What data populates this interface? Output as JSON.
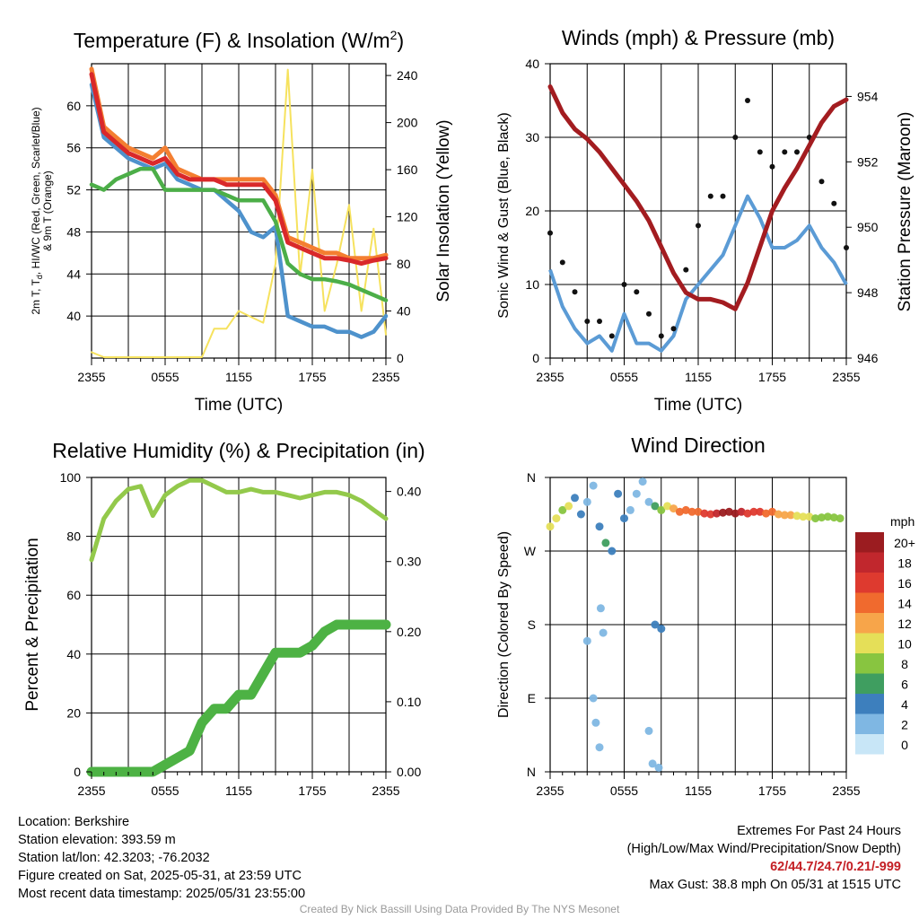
{
  "panels": {
    "temp": {
      "title": "Temperature (F) & Insolation (W/m",
      "title_sup": "2",
      "title_close": ")",
      "ylabel_left_1": "2m T, T",
      "ylabel_left_sub": "d",
      "ylabel_left_2": ", HI/WC (Red, Green, Scarlet/Blue)",
      "ylabel_left_3": "& 9m T (Orange)",
      "ylabel_right": "Solar Insolation (Yellow)",
      "xlabel": "Time (UTC)",
      "yticks_left": [
        "40",
        "44",
        "48",
        "52",
        "56",
        "60"
      ],
      "yticks_right": [
        "0",
        "40",
        "80",
        "120",
        "160",
        "200",
        "240"
      ],
      "xticks": [
        "2355",
        "0555",
        "1155",
        "1755",
        "2355"
      ]
    },
    "wind": {
      "title": "Winds (mph) & Pressure (mb)",
      "ylabel_left": "Sonic Wind & Gust (Blue, Black)",
      "ylabel_right": "Station Pressure (Maroon)",
      "xlabel": "Time (UTC)",
      "yticks_left": [
        "0",
        "10",
        "20",
        "30",
        "40"
      ],
      "yticks_right": [
        "946",
        "948",
        "950",
        "952",
        "954"
      ],
      "xticks": [
        "2355",
        "0555",
        "1155",
        "1755",
        "2355"
      ]
    },
    "rh": {
      "title": "Relative Humidity (%) & Precipitation (in)",
      "ylabel_left": "Percent & Precipitation",
      "yticks_left": [
        "0",
        "20",
        "40",
        "60",
        "80",
        "100"
      ],
      "yticks_right": [
        "0.00",
        "0.10",
        "0.20",
        "0.30",
        "0.40"
      ],
      "xticks": [
        "2355",
        "0555",
        "1155",
        "1755",
        "2355"
      ]
    },
    "dir": {
      "title": "Wind Direction",
      "ylabel_left": "Direction (Colored By Speed)",
      "yticks_left": [
        "N",
        "E",
        "S",
        "W",
        "N"
      ],
      "xticks": [
        "2355",
        "0555",
        "1155",
        "1755",
        "2355"
      ],
      "colorbar_title": "mph",
      "colorbar_labels": [
        "20+",
        "18",
        "16",
        "14",
        "12",
        "10",
        "8",
        "6",
        "4",
        "2",
        "0"
      ],
      "colorbar_colors": [
        "#9b1c20",
        "#c1272d",
        "#de3a2f",
        "#f06a2e",
        "#f7a54a",
        "#e5df58",
        "#88c540",
        "#3f9e60",
        "#3d7fbd",
        "#7fb7e3",
        "#c8e6f7"
      ]
    }
  },
  "footer": {
    "location": "Location: Berkshire",
    "elevation": "Station elevation: 393.59 m",
    "latlon": "Station lat/lon: 42.3203; -76.2032",
    "created": "Figure created on Sat, 2025-05-31, at 23:59 UTC",
    "recent": "Most recent data timestamp: 2025/05/31 23:55:00",
    "extremes_title": "Extremes For Past 24 Hours",
    "extremes_subtitle": "(High/Low/Max Wind/Precipitation/Snow Depth)",
    "extremes_values": "62/44.7/24.7/0.21/-999",
    "max_gust": "Max Gust: 38.8 mph On 05/31 at 1515 UTC",
    "credit": "Created By Nick Bassill Using Data Provided By The NYS Mesonet"
  },
  "colors": {
    "temp_red": "#d9282a",
    "dewpoint_green": "#4cae48",
    "hiwc_blue": "#4e92cc",
    "t9m_orange": "#f47f31",
    "solar_yellow": "#f6e25e",
    "wind_blue": "#5b9bd5",
    "gust_black": "#111111",
    "pressure_maroon": "#a31c20",
    "rh_green": "#93c94b",
    "precip_green": "#4db244",
    "extremes_red": "#c42025"
  },
  "chart_data": [
    {
      "type": "line",
      "title": "Temperature (F) & Insolation (W/m2)",
      "xlabel": "Time (UTC)",
      "ylabel": "2m T, Td, HI/WC (Red, Green, Scarlet/Blue) & 9m T (Orange)",
      "ylabel_right": "Solar Insolation (Yellow)",
      "x_hours": [
        0,
        1,
        2,
        3,
        4,
        5,
        6,
        7,
        8,
        9,
        10,
        11,
        12,
        13,
        14,
        15,
        16,
        17,
        18,
        19,
        20,
        21,
        22,
        23,
        24
      ],
      "xticks": [
        "2355",
        "0555",
        "1155",
        "1755",
        "2355"
      ],
      "ylim": [
        36,
        64
      ],
      "ylim_right": [
        0,
        250
      ],
      "series": [
        {
          "name": "2m T",
          "axis": "left",
          "values": [
            63,
            57.5,
            56.5,
            55.5,
            55,
            54.5,
            55,
            53.5,
            53,
            53,
            53,
            52.5,
            52.5,
            52.5,
            52.5,
            51,
            47,
            46.5,
            46,
            45.5,
            45.5,
            45.3,
            45,
            45.3,
            45.5
          ]
        },
        {
          "name": "Td",
          "axis": "left",
          "values": [
            52.5,
            52,
            53,
            53.5,
            54,
            54,
            52,
            52,
            52,
            52,
            52,
            51.5,
            51,
            51,
            51,
            49,
            45,
            44,
            43.5,
            43.5,
            43.3,
            43,
            42.5,
            42,
            41.5
          ]
        },
        {
          "name": "HI/WC",
          "axis": "left",
          "values": [
            62,
            57,
            56,
            55,
            54.5,
            54,
            54.5,
            53,
            52.5,
            52,
            52,
            51,
            50,
            48,
            47.5,
            48.5,
            40,
            39.5,
            39,
            39,
            38.5,
            38.5,
            38,
            38.5,
            40
          ]
        },
        {
          "name": "9m T",
          "axis": "left",
          "values": [
            63.5,
            58,
            57,
            56,
            55.5,
            55,
            56,
            54,
            53.5,
            53,
            53,
            53,
            53,
            53,
            53,
            51.5,
            47.5,
            47,
            46.5,
            46,
            46,
            45.5,
            45.5,
            45.5,
            45.8
          ]
        },
        {
          "name": "Solar Insolation",
          "axis": "right",
          "values": [
            5,
            0,
            0,
            0,
            0,
            0,
            0,
            0,
            0,
            0,
            25,
            25,
            40,
            35,
            30,
            80,
            245,
            70,
            160,
            40,
            80,
            130,
            40,
            110,
            20
          ]
        }
      ]
    },
    {
      "type": "line",
      "title": "Winds (mph) & Pressure (mb)",
      "xlabel": "Time (UTC)",
      "ylabel": "Sonic Wind & Gust (Blue, Black)",
      "ylabel_right": "Station Pressure (Maroon)",
      "x_hours": [
        0,
        1,
        2,
        3,
        4,
        5,
        6,
        7,
        8,
        9,
        10,
        11,
        12,
        13,
        14,
        15,
        16,
        17,
        18,
        19,
        20,
        21,
        22,
        23,
        24
      ],
      "xticks": [
        "2355",
        "0555",
        "1155",
        "1755",
        "2355"
      ],
      "ylim": [
        0,
        40
      ],
      "ylim_right": [
        946,
        955
      ],
      "series": [
        {
          "name": "Sonic Wind",
          "axis": "left",
          "values": [
            12,
            7,
            4,
            2,
            3,
            1,
            6,
            2,
            2,
            1,
            3,
            8,
            10,
            12,
            14,
            18,
            22,
            19,
            15,
            15,
            16,
            18,
            15,
            13,
            10
          ]
        },
        {
          "name": "Gust",
          "axis": "left",
          "values": [
            17,
            13,
            9,
            5,
            5,
            3,
            10,
            9,
            6,
            3,
            4,
            12,
            18,
            22,
            22,
            30,
            35,
            28,
            26,
            28,
            28,
            30,
            24,
            21,
            15
          ]
        },
        {
          "name": "Station Pressure",
          "axis": "right",
          "values": [
            954.3,
            953.5,
            953,
            952.7,
            952.3,
            951.8,
            951.3,
            950.8,
            950.2,
            949.4,
            948.6,
            948,
            947.8,
            947.8,
            947.7,
            947.5,
            948.3,
            949.4,
            950.5,
            951.2,
            951.8,
            952.5,
            953.2,
            953.7,
            953.9
          ]
        }
      ]
    },
    {
      "type": "line",
      "title": "Relative Humidity (%) & Precipitation (in)",
      "ylabel": "Percent & Precipitation",
      "x_hours": [
        0,
        1,
        2,
        3,
        4,
        5,
        6,
        7,
        8,
        9,
        10,
        11,
        12,
        13,
        14,
        15,
        16,
        17,
        18,
        19,
        20,
        21,
        22,
        23,
        24
      ],
      "xticks": [
        "2355",
        "0555",
        "1155",
        "1755",
        "2355"
      ],
      "ylim": [
        0,
        100
      ],
      "ylim_right": [
        0,
        0.42
      ],
      "series": [
        {
          "name": "Relative Humidity",
          "axis": "left",
          "values": [
            72,
            86,
            92,
            96,
            97,
            87,
            94,
            97,
            99,
            99,
            97,
            95,
            95,
            96,
            95,
            95,
            94,
            93,
            94,
            95,
            95,
            94,
            92,
            89,
            86
          ]
        },
        {
          "name": "Precipitation",
          "axis": "right",
          "values": [
            0,
            0,
            0,
            0,
            0,
            0,
            0.01,
            0.02,
            0.03,
            0.07,
            0.09,
            0.09,
            0.11,
            0.11,
            0.14,
            0.17,
            0.17,
            0.17,
            0.18,
            0.2,
            0.21,
            0.21,
            0.21,
            0.21,
            0.21
          ]
        }
      ]
    },
    {
      "type": "scatter",
      "title": "Wind Direction",
      "ylabel": "Direction (Colored By Speed)",
      "xticks": [
        "2355",
        "0555",
        "1155",
        "1755",
        "2355"
      ],
      "yticks": [
        "N",
        "E",
        "S",
        "W",
        "N"
      ],
      "ylim_degrees": [
        0,
        360
      ],
      "colorbar": {
        "title": "mph",
        "labels": [
          "20+",
          "18",
          "16",
          "14",
          "12",
          "10",
          "8",
          "6",
          "4",
          "2",
          "0"
        ]
      },
      "points_hour_dir_speed": [
        [
          0,
          300,
          10
        ],
        [
          0.5,
          310,
          9
        ],
        [
          1,
          320,
          8
        ],
        [
          1.5,
          325,
          9
        ],
        [
          2,
          335,
          4
        ],
        [
          2.5,
          315,
          3
        ],
        [
          3,
          330,
          2
        ],
        [
          3.5,
          350,
          2
        ],
        [
          4,
          300,
          3
        ],
        [
          4.5,
          280,
          6
        ],
        [
          5,
          270,
          4
        ],
        [
          5.5,
          340,
          3
        ],
        [
          6,
          310,
          3
        ],
        [
          6.5,
          320,
          1
        ],
        [
          7,
          340,
          1
        ],
        [
          7.5,
          355,
          1
        ],
        [
          8,
          330,
          1
        ],
        [
          8.5,
          325,
          6
        ],
        [
          9,
          320,
          8
        ],
        [
          9.5,
          325,
          10
        ],
        [
          10,
          322,
          12
        ],
        [
          10.5,
          318,
          13
        ],
        [
          11,
          320,
          14
        ],
        [
          11.5,
          318,
          13
        ],
        [
          12,
          318,
          14
        ],
        [
          12.5,
          316,
          15
        ],
        [
          13,
          315,
          16
        ],
        [
          13.5,
          316,
          18
        ],
        [
          14,
          317,
          20
        ],
        [
          14.5,
          318,
          21
        ],
        [
          15,
          316,
          20
        ],
        [
          15.5,
          318,
          18
        ],
        [
          16,
          316,
          16
        ],
        [
          16.5,
          318,
          15
        ],
        [
          17,
          318,
          16
        ],
        [
          17.5,
          316,
          14
        ],
        [
          18,
          318,
          14
        ],
        [
          18.5,
          315,
          12
        ],
        [
          19,
          314,
          12
        ],
        [
          19.5,
          314,
          11
        ],
        [
          20,
          313,
          10
        ],
        [
          20.5,
          312,
          9
        ],
        [
          21,
          312,
          9
        ],
        [
          21.5,
          310,
          8
        ],
        [
          22,
          311,
          8
        ],
        [
          22.5,
          312,
          8
        ],
        [
          23,
          311,
          7
        ],
        [
          23.5,
          310,
          7
        ],
        [
          3,
          160,
          2
        ],
        [
          3.5,
          90,
          2
        ],
        [
          3.7,
          60,
          2
        ],
        [
          4,
          30,
          2
        ],
        [
          8.3,
          10,
          1
        ],
        [
          8.8,
          5,
          1
        ],
        [
          4.3,
          170,
          2
        ],
        [
          8.5,
          180,
          4
        ],
        [
          9,
          175,
          4
        ],
        [
          4.1,
          200,
          1
        ],
        [
          8,
          50,
          1
        ]
      ]
    }
  ]
}
